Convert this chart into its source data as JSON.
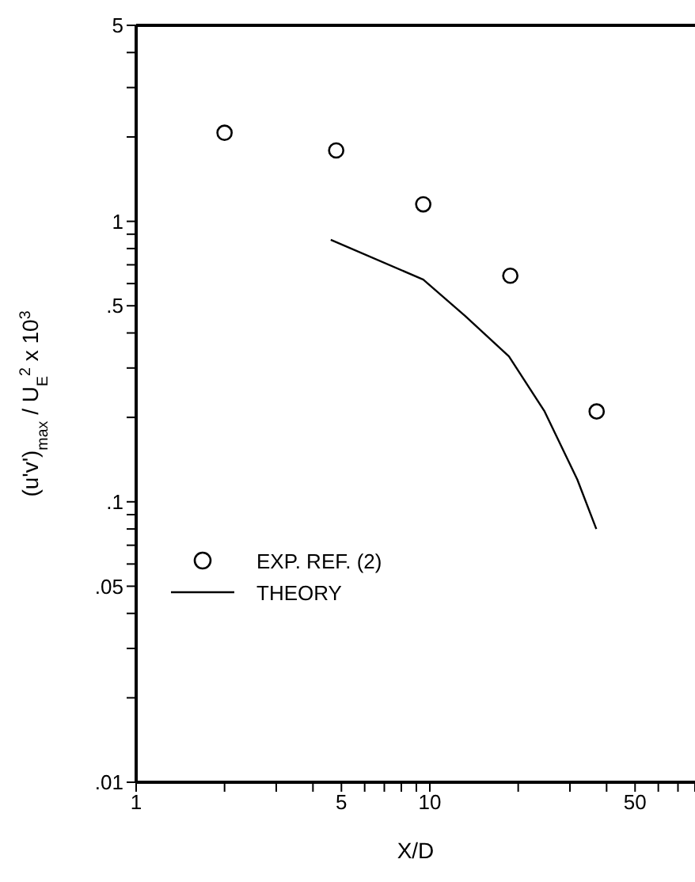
{
  "chart_data": {
    "type": "scatter",
    "xlabel": "X/D",
    "ylabel": "(u'v')$_{max}$ / U$_{E}$$^{2}$  x 10$^{3}$",
    "log": "xy",
    "xlim": [
      1,
      80
    ],
    "ylim": [
      0.01,
      5
    ],
    "xticks": [
      1,
      {
        "value": 2,
        "label": null
      },
      {
        "value": 3,
        "label": null
      },
      {
        "value": 4,
        "label": null
      },
      5,
      {
        "value": 6,
        "label": null
      },
      {
        "value": 7,
        "label": null
      },
      {
        "value": 8,
        "label": null
      },
      {
        "value": 9,
        "label": null
      },
      10,
      {
        "value": 20,
        "label": null
      },
      {
        "value": 30,
        "label": null
      },
      {
        "value": 40,
        "label": null
      },
      50,
      {
        "value": 60,
        "label": null
      },
      {
        "value": 70,
        "label": null
      },
      {
        "value": 80,
        "label": null
      }
    ],
    "yticks": [
      {
        "value": 0.01,
        "label": ".01"
      },
      {
        "value": 0.02,
        "label": null
      },
      {
        "value": 0.03,
        "label": null
      },
      {
        "value": 0.04,
        "label": null
      },
      {
        "value": 0.05,
        "label": ".05"
      },
      {
        "value": 0.06,
        "label": null
      },
      {
        "value": 0.07,
        "label": null
      },
      {
        "value": 0.08,
        "label": null
      },
      {
        "value": 0.09,
        "label": null
      },
      {
        "value": 0.1,
        "label": ".1"
      },
      {
        "value": 0.2,
        "label": null
      },
      {
        "value": 0.3,
        "label": null
      },
      {
        "value": 0.4,
        "label": null
      },
      {
        "value": 0.5,
        "label": ".5"
      },
      {
        "value": 0.6,
        "label": null
      },
      {
        "value": 0.7,
        "label": null
      },
      {
        "value": 0.8,
        "label": null
      },
      {
        "value": 0.9,
        "label": null
      },
      1,
      {
        "value": 2,
        "label": null
      },
      {
        "value": 3,
        "label": null
      },
      {
        "value": 4,
        "label": null
      },
      5
    ],
    "grid": false,
    "legend": "bottom left",
    "series": [
      {
        "name": "EXP. REF. (2)",
        "marker": "circle",
        "color": "#000000",
        "x": [
          2,
          4.8,
          9.5,
          18.8,
          37
        ],
        "values": [
          2.07,
          1.79,
          1.15,
          0.64,
          0.21
        ]
      },
      {
        "name": "THEORY",
        "type": "line",
        "marker": "none",
        "line_style": "solid",
        "color": "#000000",
        "x": [
          4.6,
          9.5,
          13.2,
          18.6,
          24.6,
          31.8,
          36.9
        ],
        "values": [
          0.86,
          0.62,
          0.46,
          0.33,
          0.21,
          0.12,
          0.08
        ]
      }
    ]
  }
}
